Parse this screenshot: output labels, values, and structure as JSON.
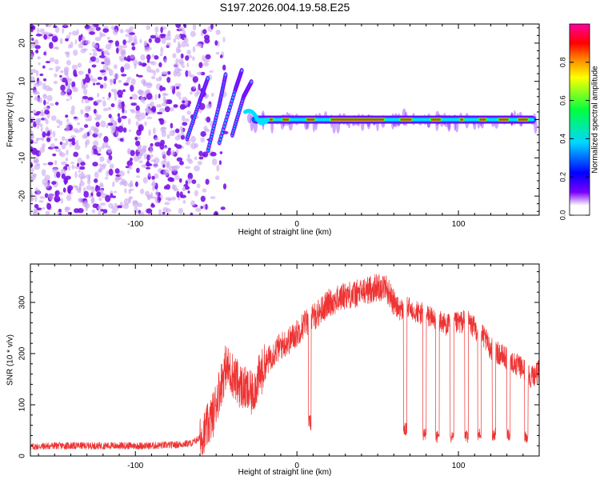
{
  "title": "S197.2026.004.19.58.E25",
  "colors": {
    "scatter_purple": "#7a14e6",
    "scatter_light": "#c9a7f0",
    "snr_line": "#ee3333",
    "axis": "#000000"
  },
  "chart_data": [
    {
      "type": "heatmap",
      "name": "spectrogram",
      "xlabel": "Height of straight line (km)",
      "ylabel": "Frequency (Hz)",
      "xlim": [
        -165,
        150
      ],
      "ylim": [
        -25,
        25
      ],
      "xticks": [
        -100,
        0,
        100
      ],
      "xtick_labels": [
        "-100",
        "0",
        "100"
      ],
      "yticks": [
        -20,
        -10,
        0,
        10,
        20
      ],
      "ytick_labels": [
        "-20",
        "-10",
        "0",
        "10",
        "20"
      ],
      "colorbar": {
        "label": "Normalized spectral amplitude",
        "range": [
          0,
          1
        ],
        "ticks": [
          0.0,
          0.2,
          0.4,
          0.6,
          0.8
        ],
        "tick_labels": [
          "0.0",
          "0.2",
          "0.4",
          "0.6",
          "0.8"
        ],
        "colormap": [
          "#ffffff",
          "#7a00ff",
          "#0000ff",
          "#00d8ff",
          "#00ff40",
          "#ffff00",
          "#ff8000",
          "#ff0000",
          "#ff00a0"
        ]
      },
      "features": {
        "noise_region_x": [
          -165,
          -60
        ],
        "tone_frequency_hz": 0,
        "strong_tone_x": [
          -25,
          55
        ]
      }
    },
    {
      "type": "line",
      "name": "snr",
      "xlabel": "Height of straight line (km)",
      "ylabel": "SNR (10 * v/v)",
      "xlim": [
        -165,
        150
      ],
      "ylim": [
        0,
        375
      ],
      "xticks": [
        -100,
        0,
        100
      ],
      "xtick_labels": [
        "-100",
        "0",
        "100"
      ],
      "yticks": [
        0,
        100,
        200,
        300
      ],
      "ytick_labels": [
        "0",
        "100",
        "200",
        "300"
      ],
      "series": [
        {
          "name": "SNR",
          "x": [
            -165,
            -150,
            -130,
            -110,
            -90,
            -75,
            -65,
            -58,
            -52,
            -48,
            -44,
            -40,
            -36,
            -32,
            -28,
            -24,
            -20,
            -15,
            -10,
            -5,
            0,
            5,
            10,
            15,
            20,
            25,
            30,
            35,
            40,
            45,
            50,
            55,
            60,
            62,
            65,
            70,
            75,
            80,
            85,
            90,
            95,
            100,
            105,
            110,
            115,
            120,
            125,
            130,
            135,
            140,
            145,
            150
          ],
          "y": [
            18,
            20,
            20,
            20,
            20,
            22,
            25,
            40,
            80,
            130,
            175,
            160,
            140,
            130,
            120,
            150,
            175,
            200,
            215,
            225,
            240,
            260,
            270,
            285,
            300,
            305,
            315,
            315,
            320,
            325,
            330,
            330,
            300,
            290,
            285,
            290,
            280,
            275,
            270,
            260,
            255,
            260,
            265,
            250,
            235,
            210,
            200,
            190,
            180,
            170,
            155,
            165
          ]
        }
      ],
      "dropouts": [
        {
          "x": 67,
          "y": 40
        },
        {
          "x": 79,
          "y": 30
        },
        {
          "x": 87,
          "y": 25
        },
        {
          "x": 96,
          "y": 25
        },
        {
          "x": 105,
          "y": 25
        },
        {
          "x": 113,
          "y": 30
        },
        {
          "x": 122,
          "y": 30
        },
        {
          "x": 131,
          "y": 30
        },
        {
          "x": 142,
          "y": 25
        }
      ],
      "dip": {
        "x": 8,
        "y": 50
      }
    }
  ]
}
